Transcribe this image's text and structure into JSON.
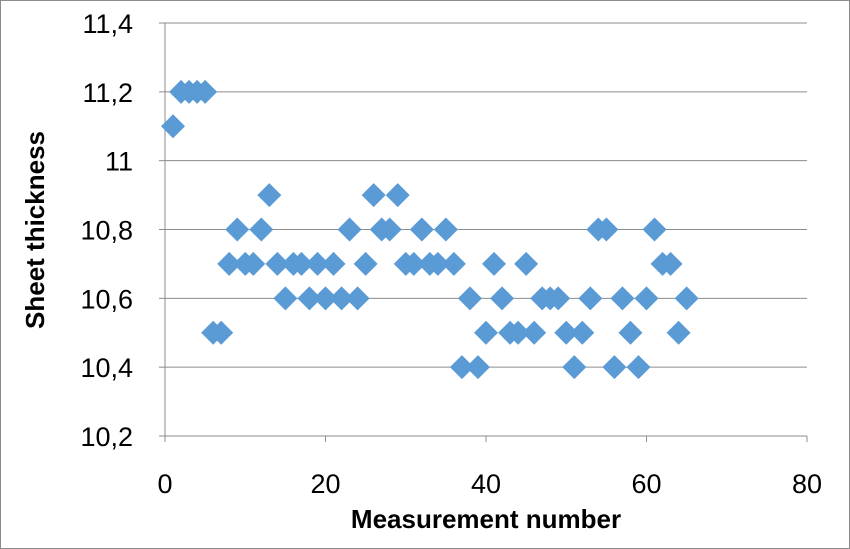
{
  "chart_data": {
    "type": "scatter",
    "title": "",
    "xlabel": "Measurement number",
    "ylabel": "Sheet thickness",
    "xlim": [
      0,
      80
    ],
    "ylim": [
      10.2,
      11.4
    ],
    "xticks": [
      0,
      20,
      40,
      60,
      80
    ],
    "xtick_labels": [
      "0",
      "20",
      "40",
      "60",
      "80"
    ],
    "yticks": [
      10.2,
      10.4,
      10.6,
      10.8,
      11.0,
      11.2,
      11.4
    ],
    "ytick_labels": [
      "10,2",
      "10,4",
      "10,6",
      "10,8",
      "11",
      "11,2",
      "11,4"
    ],
    "grid": "horizontal",
    "legend": "none",
    "marker": "diamond",
    "color": "#5b9bd5",
    "series": [
      {
        "x": [
          1,
          2,
          3,
          4,
          5,
          6,
          7,
          8,
          9,
          10,
          11,
          12,
          13,
          14,
          15,
          16,
          17,
          18,
          19,
          20,
          21,
          22,
          23,
          24,
          25,
          26,
          27,
          28,
          29,
          30,
          31,
          32,
          33,
          34,
          35,
          36,
          37,
          38,
          39,
          40,
          41,
          42,
          43,
          44,
          45,
          46,
          47,
          48,
          49,
          50,
          51,
          52,
          53,
          54,
          55,
          56,
          57,
          58,
          59,
          60,
          61,
          62,
          63,
          64,
          65
        ],
        "y": [
          11.1,
          11.2,
          11.2,
          11.2,
          11.2,
          10.5,
          10.5,
          10.7,
          10.8,
          10.7,
          10.7,
          10.8,
          10.9,
          10.7,
          10.6,
          10.7,
          10.7,
          10.6,
          10.7,
          10.6,
          10.7,
          10.6,
          10.8,
          10.6,
          10.7,
          10.9,
          10.8,
          10.8,
          10.9,
          10.7,
          10.7,
          10.8,
          10.7,
          10.7,
          10.8,
          10.7,
          10.4,
          10.6,
          10.4,
          10.5,
          10.7,
          10.6,
          10.5,
          10.5,
          10.7,
          10.5,
          10.6,
          10.6,
          10.6,
          10.5,
          10.4,
          10.5,
          10.6,
          10.8,
          10.8,
          10.4,
          10.6,
          10.5,
          10.4,
          10.6,
          10.8,
          10.7,
          10.7,
          10.5,
          10.6
        ]
      }
    ]
  }
}
